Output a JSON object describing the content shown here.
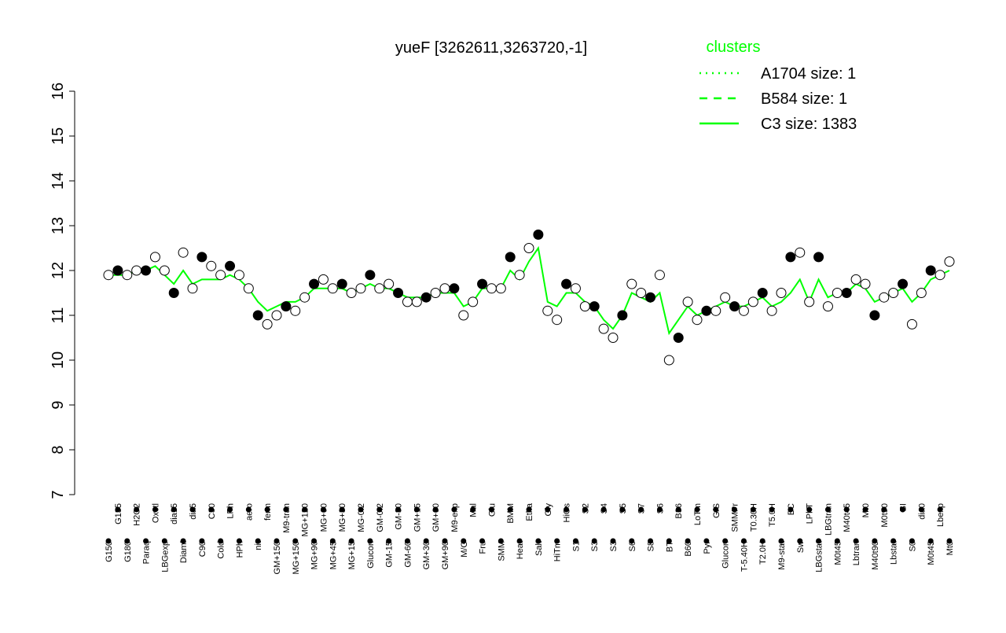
{
  "chart_data": {
    "type": "line",
    "title": "yueF [3262611,3263720,-1]",
    "legend_title": "clusters",
    "legend_position": "top-right",
    "categories": [
      "G150",
      "G135",
      "G180",
      "H2O2",
      "Paraq",
      "Oxctl",
      "LBGexp",
      "dia15",
      "Diami",
      "dia5",
      "C90",
      "C30",
      "Cold",
      "LPh",
      "HPh",
      "aero",
      "nit",
      "ferm",
      "GM+150",
      "M9-tran",
      "MG+150",
      "MG+120",
      "MG+90",
      "MG+60",
      "MG+45",
      "MG+30",
      "MG+15",
      "MG-0.2",
      "Glucon",
      "GM-0.2",
      "GM-15",
      "GM-30",
      "GM-60",
      "GM+15",
      "GM+30",
      "GM+60",
      "GM+90",
      "M9-exp",
      "M/G",
      "Mal",
      "Fru",
      "Glu",
      "SMM",
      "BMM",
      "Heat",
      "Etha",
      "Salt",
      "Gly",
      "HiTm",
      "HiOs",
      "S1",
      "S2",
      "S3",
      "S4",
      "S3",
      "S5",
      "S6",
      "S7",
      "S8",
      "S6",
      "BT",
      "B36",
      "B60",
      "LoTm",
      "Pyr",
      "G/S",
      "Glucon",
      "SMMPr",
      "T-5.40H",
      "T0.30H",
      "T2.0H",
      "T5.0H",
      "M9-stat",
      "BC",
      "Sw",
      "LPhT",
      "LBGstat",
      "LBGtran",
      "M0t45",
      "M40t45",
      "Lbtran",
      "Mt0",
      "M40t90",
      "M0t90",
      "Lbstat",
      "BI",
      "S0",
      "dia0",
      "M0t45",
      "Lbexp",
      "Mt0"
    ],
    "values": [
      11.9,
      12.0,
      11.9,
      12.0,
      12.0,
      12.3,
      12.0,
      11.5,
      12.4,
      11.6,
      12.3,
      12.1,
      11.9,
      12.1,
      11.9,
      11.6,
      11.0,
      10.8,
      11.0,
      11.2,
      11.1,
      11.4,
      11.7,
      11.8,
      11.6,
      11.7,
      11.5,
      11.6,
      11.9,
      11.6,
      11.7,
      11.5,
      11.3,
      11.3,
      11.4,
      11.5,
      11.6,
      11.6,
      11.0,
      11.3,
      11.7,
      11.6,
      11.6,
      12.3,
      11.9,
      12.5,
      12.8,
      11.1,
      10.9,
      11.7,
      11.6,
      11.2,
      11.2,
      10.7,
      10.5,
      11.0,
      11.7,
      11.5,
      11.4,
      11.9,
      10.0,
      10.5,
      11.3,
      10.9,
      11.1,
      11.1,
      11.4,
      11.2,
      11.1,
      11.3,
      11.5,
      11.1,
      11.5,
      12.3,
      12.4,
      11.3,
      12.3,
      11.2,
      11.5,
      11.5,
      11.8,
      11.7,
      11.0,
      11.4,
      11.5,
      11.7,
      10.8,
      11.5,
      12.0,
      11.9,
      12.2
    ],
    "series": [
      {
        "name": "A1704 size: 1",
        "color": "#00ff00",
        "dash": "dotted"
      },
      {
        "name": "B584 size: 1",
        "color": "#00ff00",
        "dash": "dashed"
      },
      {
        "name": "C3 size: 1383",
        "color": "#00ff00",
        "dash": "solid",
        "values": [
          11.9,
          11.9,
          11.9,
          12.0,
          12.0,
          12.1,
          11.9,
          11.7,
          12.0,
          11.7,
          11.8,
          11.8,
          11.8,
          11.9,
          11.8,
          11.6,
          11.3,
          11.1,
          11.2,
          11.3,
          11.3,
          11.4,
          11.6,
          11.6,
          11.6,
          11.6,
          11.5,
          11.6,
          11.7,
          11.6,
          11.6,
          11.5,
          11.4,
          11.4,
          11.4,
          11.5,
          11.5,
          11.5,
          11.2,
          11.3,
          11.6,
          11.6,
          11.6,
          12.0,
          11.8,
          12.2,
          12.5,
          11.3,
          11.2,
          11.5,
          11.5,
          11.3,
          11.2,
          10.9,
          10.7,
          11.0,
          11.5,
          11.4,
          11.3,
          11.5,
          10.6,
          10.9,
          11.2,
          11.0,
          11.1,
          11.2,
          11.3,
          11.2,
          11.2,
          11.3,
          11.4,
          11.2,
          11.3,
          11.5,
          11.8,
          11.3,
          11.8,
          11.4,
          11.5,
          11.5,
          11.7,
          11.6,
          11.3,
          11.4,
          11.5,
          11.6,
          11.3,
          11.5,
          11.8,
          11.9,
          12.0
        ]
      }
    ],
    "ylim": [
      7,
      16
    ],
    "yticks": [
      7,
      8,
      9,
      10,
      11,
      12,
      13,
      14,
      15,
      16
    ]
  }
}
